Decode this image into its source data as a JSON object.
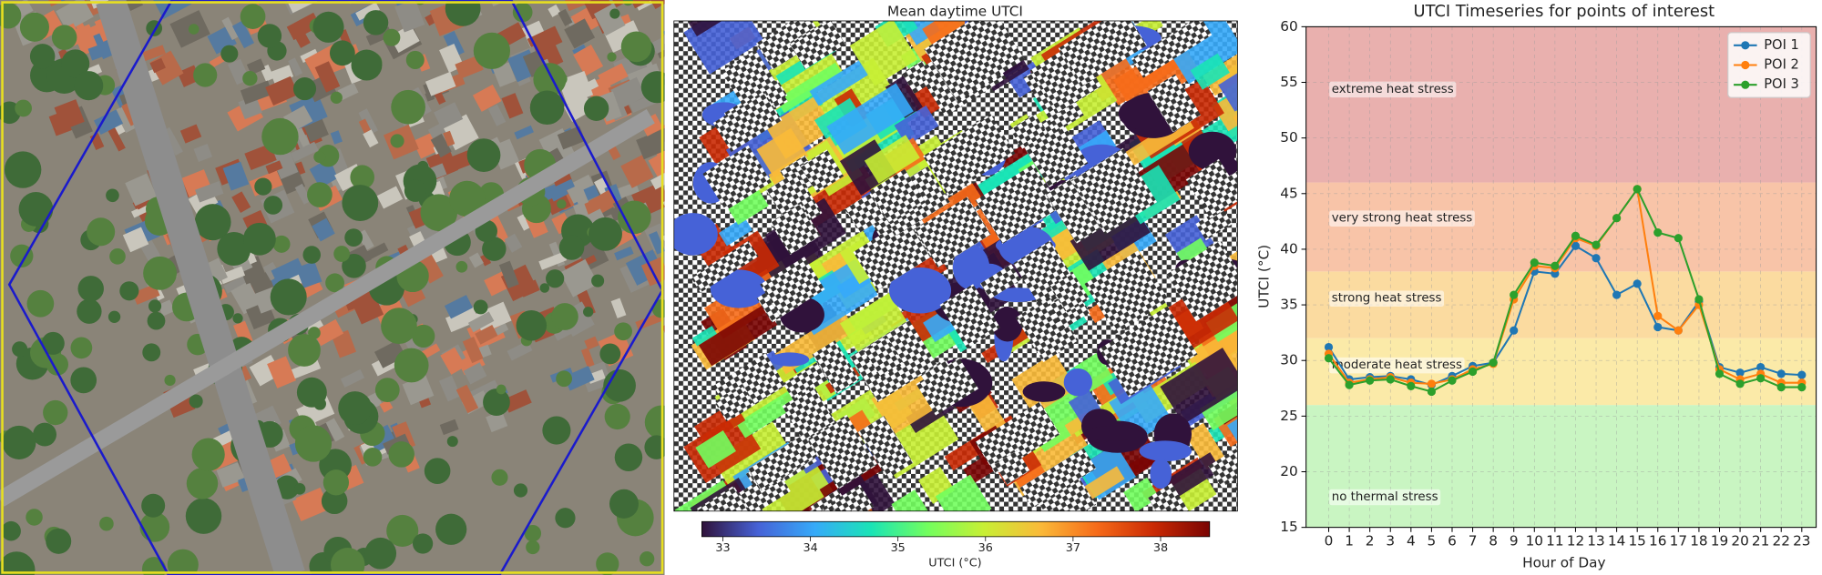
{
  "chart_data": [
    {
      "type": "heatmap",
      "title": "Mean daytime UTCI",
      "colorbar_label": "UTCI (°C)",
      "clim": [
        32.76,
        38.56
      ],
      "cticks": [
        33,
        34,
        35,
        36,
        37,
        38
      ],
      "colormap": [
        "#30123b",
        "#4662d7",
        "#36aaf9",
        "#1ae4b6",
        "#72fe5e",
        "#c8ef34",
        "#faba39",
        "#f66b19",
        "#ca2a04",
        "#7a0403"
      ]
    },
    {
      "type": "line",
      "title": "UTCI Timeseries for points of interest",
      "xlabel": "Hour of Day",
      "ylabel": "UTCI (°C)",
      "x": [
        0,
        1,
        2,
        3,
        4,
        5,
        6,
        7,
        8,
        9,
        10,
        11,
        12,
        13,
        14,
        15,
        16,
        17,
        18,
        19,
        20,
        21,
        22,
        23
      ],
      "xlim": [
        -1.1,
        23.7
      ],
      "xticks": [
        0,
        1,
        2,
        3,
        4,
        5,
        6,
        7,
        8,
        9,
        10,
        11,
        12,
        13,
        14,
        15,
        16,
        17,
        18,
        19,
        20,
        21,
        22,
        23
      ],
      "ylim": [
        15,
        60
      ],
      "yticks": [
        15,
        20,
        25,
        30,
        35,
        40,
        45,
        50,
        55,
        60
      ],
      "grid": true,
      "legend": "upper right",
      "bands": [
        {
          "name": "no thermal stress",
          "from": 15,
          "to": 26,
          "color": "#c9f5c2"
        },
        {
          "name": "moderate heat stress",
          "from": 26,
          "to": 32,
          "color": "#fbeaa8"
        },
        {
          "name": "strong heat stress",
          "from": 32,
          "to": 38,
          "color": "#fbdba0"
        },
        {
          "name": "very strong heat stress",
          "from": 38,
          "to": 46,
          "color": "#f8c4a8"
        },
        {
          "name": "extreme heat stress",
          "from": 46,
          "to": 60,
          "color": "#e9b0ae"
        }
      ],
      "series": [
        {
          "name": "POI 1",
          "color": "#1f77b4",
          "values": [
            31.2,
            28.3,
            28.5,
            28.6,
            28.3,
            27.8,
            28.6,
            29.5,
            29.8,
            32.7,
            38.0,
            37.8,
            40.3,
            39.2,
            35.9,
            36.9,
            33.0,
            32.7,
            35.3,
            29.4,
            28.9,
            29.4,
            28.8,
            28.7
          ]
        },
        {
          "name": "POI 2",
          "color": "#ff7f0e",
          "values": [
            30.6,
            28.0,
            28.3,
            28.5,
            28.0,
            27.9,
            28.3,
            29.2,
            29.7,
            35.5,
            38.5,
            38.3,
            41.0,
            40.3,
            42.8,
            45.4,
            34.0,
            32.7,
            35.0,
            29.2,
            28.3,
            28.8,
            28.0,
            28.0
          ]
        },
        {
          "name": "POI 3",
          "color": "#2ca02c",
          "values": [
            30.2,
            27.8,
            28.2,
            28.3,
            27.7,
            27.2,
            28.2,
            29.0,
            29.8,
            35.9,
            38.8,
            38.5,
            41.2,
            40.4,
            42.8,
            45.4,
            41.5,
            41.0,
            35.5,
            28.8,
            27.9,
            28.4,
            27.6,
            27.6
          ]
        }
      ]
    }
  ]
}
